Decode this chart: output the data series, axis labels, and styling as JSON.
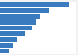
{
  "values": [
    73,
    52,
    42,
    38,
    34,
    26,
    18,
    14,
    10
  ],
  "bar_color": "#3a7bbf",
  "background_color": "#f2f2f2",
  "plot_bg_color": "#ffffff",
  "grid_color": "#d9d9d9",
  "xlim": [
    0,
    80
  ],
  "bar_height": 0.82
}
